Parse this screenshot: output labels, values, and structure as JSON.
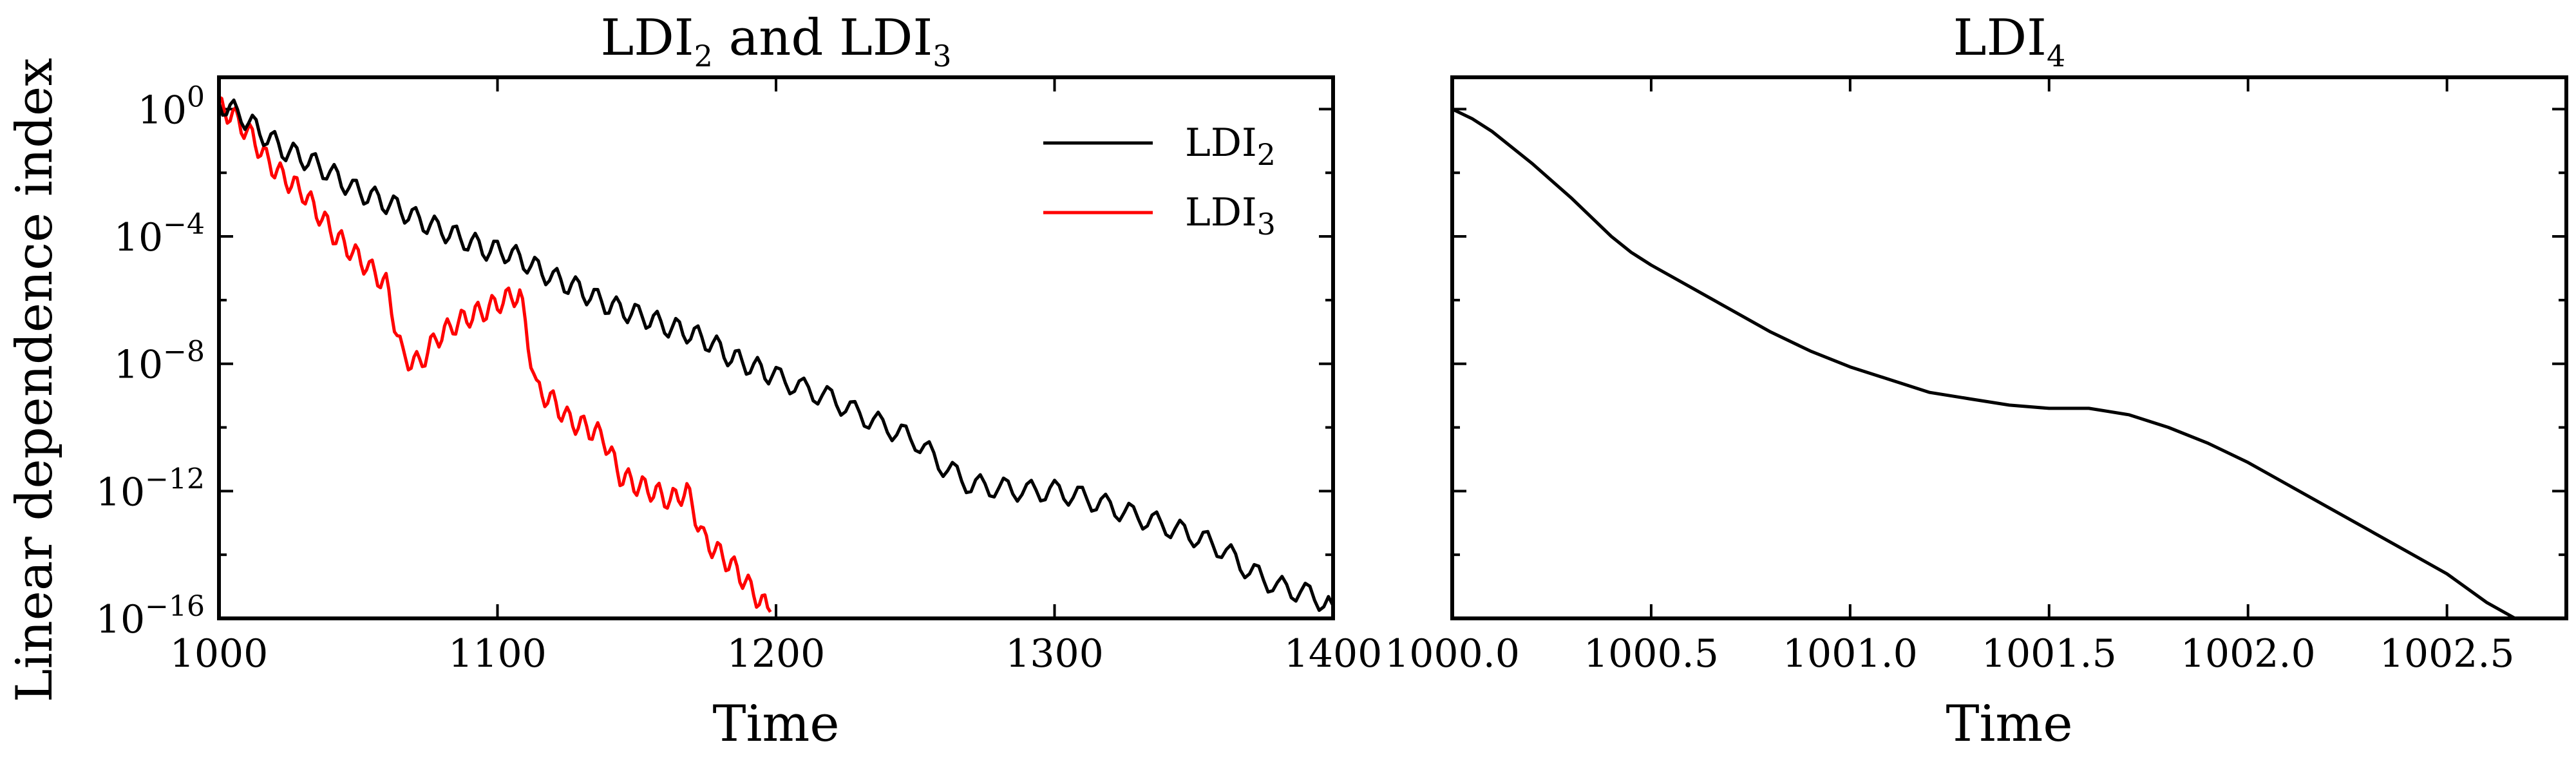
{
  "chart_data": [
    {
      "type": "line",
      "title": {
        "base": "LDI",
        "sub1": "2",
        "mid": " and LDI",
        "sub2": "3"
      },
      "xlabel": "Time",
      "ylabel": "Linear dependence index",
      "xlim": [
        1000,
        1400
      ],
      "ylim_log10": [
        -16,
        1
      ],
      "yscale": "log",
      "xticks": [
        "1000",
        "1100",
        "1200",
        "1300",
        "1400"
      ],
      "xtick_values": [
        1000,
        1100,
        1200,
        1300,
        1400
      ],
      "yticks": [
        {
          "exp": 0,
          "base": "10",
          "sup": "0"
        },
        {
          "exp": -4,
          "base": "10",
          "sup": "−4"
        },
        {
          "exp": -8,
          "base": "10",
          "sup": "−8"
        },
        {
          "exp": -12,
          "base": "10",
          "sup": "−12"
        },
        {
          "exp": -16,
          "base": "10",
          "sup": "−16"
        }
      ],
      "grid": false,
      "legend_position": "top-right",
      "series": [
        {
          "name": {
            "base": "LDI",
            "sub": "2"
          },
          "color": "#000000",
          "x": [
            1000,
            1008,
            1016,
            1024,
            1032,
            1040,
            1048,
            1056,
            1064,
            1072,
            1080,
            1088,
            1096,
            1104,
            1112,
            1120,
            1128,
            1136,
            1144,
            1152,
            1160,
            1168,
            1176,
            1184,
            1192,
            1200,
            1210,
            1220,
            1230,
            1240,
            1250,
            1260,
            1270,
            1280,
            1290,
            1300,
            1310,
            1320,
            1330,
            1340,
            1350,
            1360,
            1370,
            1380,
            1390,
            1400
          ],
          "log10_y": [
            0.2,
            -0.2,
            -0.8,
            -1.3,
            -1.6,
            -2.0,
            -2.5,
            -2.8,
            -3.1,
            -3.5,
            -3.8,
            -4.1,
            -4.4,
            -4.5,
            -4.9,
            -5.3,
            -5.6,
            -6.0,
            -6.3,
            -6.5,
            -6.8,
            -7.0,
            -7.3,
            -7.8,
            -8.1,
            -8.4,
            -8.8,
            -9.1,
            -9.6,
            -10.0,
            -10.4,
            -11.2,
            -11.8,
            -11.9,
            -12.0,
            -12.0,
            -12.2,
            -12.5,
            -12.8,
            -13.1,
            -13.4,
            -13.8,
            -14.5,
            -15.0,
            -15.2,
            -15.6
          ]
        },
        {
          "name": {
            "base": "LDI",
            "sub": "3"
          },
          "color": "#ff0000",
          "x": [
            1000,
            1006,
            1012,
            1018,
            1024,
            1030,
            1036,
            1042,
            1048,
            1054,
            1060,
            1066,
            1072,
            1078,
            1084,
            1090,
            1096,
            1102,
            1108,
            1114,
            1120,
            1126,
            1132,
            1138,
            1144,
            1150,
            1156,
            1162,
            1168,
            1174,
            1180,
            1186,
            1192,
            1198
          ],
          "log10_y": [
            0.1,
            -0.3,
            -0.9,
            -1.7,
            -2.2,
            -2.6,
            -3.3,
            -4.0,
            -4.5,
            -5.0,
            -5.5,
            -7.8,
            -8.0,
            -7.2,
            -6.8,
            -6.5,
            -6.3,
            -6.0,
            -5.8,
            -8.8,
            -9.2,
            -9.8,
            -10.0,
            -10.3,
            -11.5,
            -11.8,
            -12.0,
            -12.3,
            -12.0,
            -13.5,
            -14.0,
            -14.5,
            -15.2,
            -15.8
          ]
        }
      ]
    },
    {
      "type": "line",
      "title": {
        "base": "LDI",
        "sub": "4"
      },
      "xlabel": "Time",
      "xlim": [
        1000.0,
        1002.8
      ],
      "ylim_log10": [
        -16,
        1
      ],
      "yscale": "log",
      "xticks": [
        "1000.0",
        "1000.5",
        "1001.0",
        "1001.5",
        "1002.0",
        "1002.5"
      ],
      "xtick_values": [
        1000.0,
        1000.5,
        1001.0,
        1001.5,
        1002.0,
        1002.5
      ],
      "grid": false,
      "series": [
        {
          "color": "#000000",
          "x": [
            1000.0,
            1000.05,
            1000.1,
            1000.2,
            1000.3,
            1000.4,
            1000.45,
            1000.5,
            1000.6,
            1000.7,
            1000.8,
            1000.9,
            1001.0,
            1001.1,
            1001.2,
            1001.3,
            1001.4,
            1001.5,
            1001.6,
            1001.65,
            1001.7,
            1001.8,
            1001.9,
            1002.0,
            1002.1,
            1002.2,
            1002.3,
            1002.4,
            1002.5,
            1002.6,
            1002.7,
            1002.75
          ],
          "log10_y": [
            0.0,
            -0.3,
            -0.7,
            -1.7,
            -2.8,
            -4.0,
            -4.5,
            -4.9,
            -5.6,
            -6.3,
            -7.0,
            -7.6,
            -8.1,
            -8.5,
            -8.9,
            -9.1,
            -9.3,
            -9.4,
            -9.4,
            -9.5,
            -9.6,
            -10.0,
            -10.5,
            -11.1,
            -11.8,
            -12.5,
            -13.2,
            -13.9,
            -14.6,
            -15.5,
            -16.2,
            -16.5
          ]
        }
      ]
    }
  ]
}
